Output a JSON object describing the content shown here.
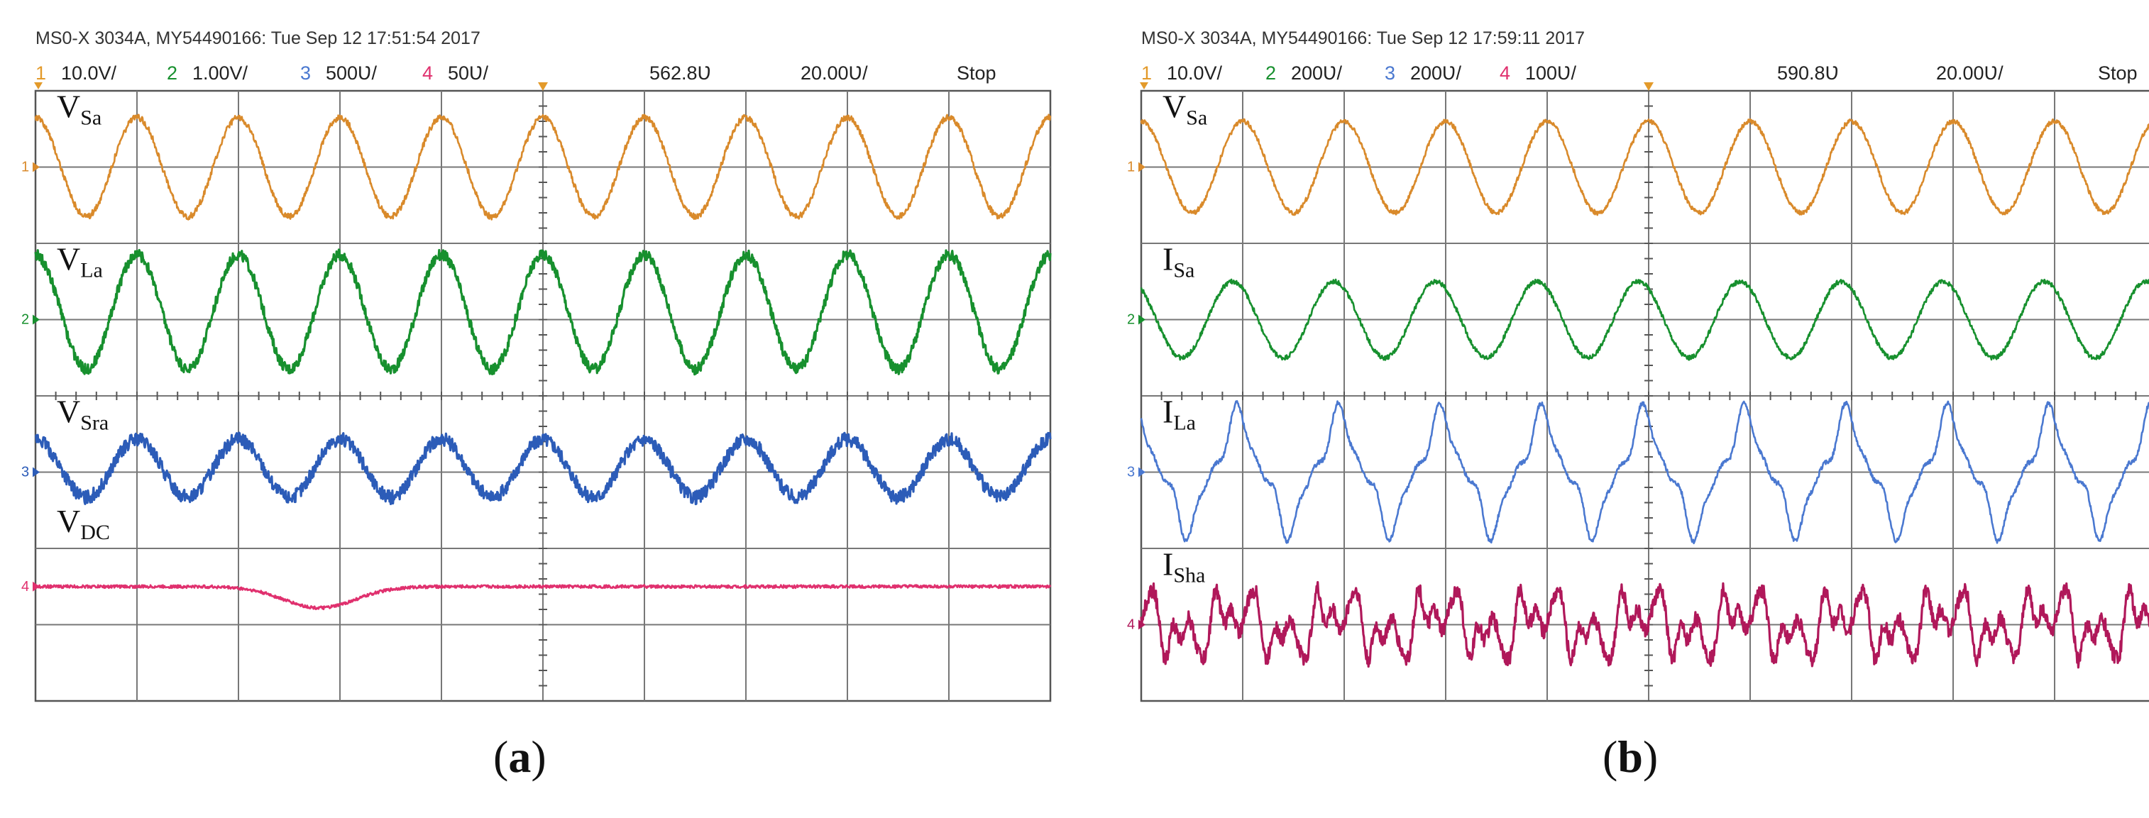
{
  "chart_data": [
    {
      "panel": "a",
      "type": "line",
      "header": "MS0-X 3034A, MY54490166: Tue Sep 12 17:51:54 2017",
      "caption_letter": "a",
      "settings": {
        "ch1": {
          "num": "1",
          "scale": "10.0V/"
        },
        "ch2": {
          "num": "2",
          "scale": "1.00V/"
        },
        "ch3": {
          "num": "3",
          "scale": "500Ʋ/"
        },
        "ch4": {
          "num": "4",
          "scale": "50Ʋ/"
        },
        "trigger": "562.8Ʋ",
        "timebase": "20.00Ʋ/",
        "state": "Stop"
      },
      "divisions": {
        "x": 10,
        "y": 8
      },
      "series": [
        {
          "channel": "1",
          "label": "V",
          "sub": "Sa",
          "color": "#d98a2b",
          "waveform": "sine",
          "cycles": 10,
          "amplitude_div": 0.65,
          "offset_div": 0.0,
          "phase": 0.25,
          "noise": 0.04
        },
        {
          "channel": "2",
          "label": "V",
          "sub": "La",
          "color": "#17902e",
          "waveform": "sine",
          "cycles": 10,
          "amplitude_div": 0.75,
          "offset_div": 0.1,
          "phase": 0.25,
          "noise": 0.07
        },
        {
          "channel": "3",
          "label": "V",
          "sub": "Sra",
          "color": "#2c5cb8",
          "waveform": "sine",
          "cycles": 10,
          "amplitude_div": 0.38,
          "offset_div": 0.05,
          "phase": 0.25,
          "noise": 0.09
        },
        {
          "channel": "4",
          "label": "V",
          "sub": "DC",
          "color": "#e0306e",
          "waveform": "dc",
          "level_div": 0.0,
          "dip_center": 0.28,
          "dip_width": 0.05,
          "dip_depth": 0.28,
          "noise": 0.02
        }
      ],
      "channel_offsets_div": [
        3.0,
        1.0,
        -1.0,
        -2.5
      ]
    },
    {
      "panel": "b",
      "type": "line",
      "header": "MS0-X 3034A, MY54490166: Tue Sep 12 17:59:11 2017",
      "caption_letter": "b",
      "settings": {
        "ch1": {
          "num": "1",
          "scale": "10.0V/"
        },
        "ch2": {
          "num": "2",
          "scale": "200Ʋ/"
        },
        "ch3": {
          "num": "3",
          "scale": "200Ʋ/"
        },
        "ch4": {
          "num": "4",
          "scale": "100Ʋ/"
        },
        "trigger": "590.8Ʋ",
        "timebase": "20.00Ʋ/",
        "state": "Stop"
      },
      "divisions": {
        "x": 10,
        "y": 8
      },
      "series": [
        {
          "channel": "1",
          "label": "V",
          "sub": "Sa",
          "color": "#d98a2b",
          "waveform": "sine",
          "cycles": 10,
          "amplitude_div": 0.6,
          "offset_div": 0.0,
          "phase": 0.25,
          "noise": 0.03
        },
        {
          "channel": "2",
          "label": "I",
          "sub": "Sa",
          "color": "#17902e",
          "waveform": "sine",
          "cycles": 10,
          "amplitude_div": 0.5,
          "offset_div": 0.0,
          "phase": 0.35,
          "noise": 0.03
        },
        {
          "channel": "3",
          "label": "I",
          "sub": "La",
          "color": "#4a78d0",
          "waveform": "distorted",
          "cycles": 10,
          "amplitude_div": 0.78,
          "offset_div": 0.0,
          "phase": 0.3,
          "noise": 0.03
        },
        {
          "channel": "4",
          "label": "I",
          "sub": "Sha",
          "color": "#b0185a",
          "waveform": "harmonic",
          "cycles": 10,
          "amplitude_div": 0.55,
          "offset_div": 0.0,
          "phase": 0.3,
          "noise": 0.1
        }
      ],
      "channel_offsets_div": [
        3.0,
        1.0,
        -1.0,
        -3.0
      ]
    }
  ]
}
